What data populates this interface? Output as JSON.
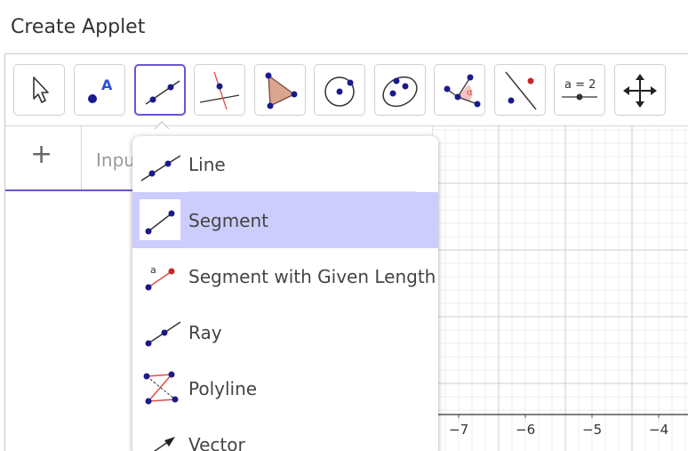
{
  "window": {
    "title": "Create Applet"
  },
  "toolbar": {
    "tools": [
      {
        "name": "Move",
        "icon": "arrow-cursor-icon"
      },
      {
        "name": "Point",
        "icon": "point-icon",
        "label": "A"
      },
      {
        "name": "Segment",
        "icon": "segment-icon",
        "active": true
      },
      {
        "name": "Perpendicular Line",
        "icon": "perpendicular-line-icon"
      },
      {
        "name": "Polygon",
        "icon": "polygon-icon"
      },
      {
        "name": "Circle with Center through Point",
        "icon": "circle-icon"
      },
      {
        "name": "Ellipse",
        "icon": "ellipse-icon"
      },
      {
        "name": "Angle",
        "icon": "angle-icon",
        "label": "α"
      },
      {
        "name": "Reflect about Line",
        "icon": "reflect-icon"
      },
      {
        "name": "Slider",
        "icon": "slider-icon",
        "label": "a = 2"
      },
      {
        "name": "Move Graphics View",
        "icon": "move-graphics-icon"
      }
    ]
  },
  "algebra": {
    "add_label": "+",
    "input_placeholder": "Input..."
  },
  "menu": {
    "items": [
      {
        "label": "Line",
        "icon": "line-icon"
      },
      {
        "label": "Segment",
        "icon": "segment-icon",
        "selected": true
      },
      {
        "label": "Segment with Given Length",
        "icon": "segment-given-length-icon",
        "point_label": "a"
      },
      {
        "label": "Ray",
        "icon": "ray-icon"
      },
      {
        "label": "Polyline",
        "icon": "polyline-icon"
      },
      {
        "label": "Vector",
        "icon": "vector-icon"
      }
    ]
  },
  "graphics": {
    "x_ticks": [
      "−7",
      "−6",
      "−5",
      "−4"
    ]
  },
  "colors": {
    "accent": "#6557d2",
    "selected_bg": "#cccdfd",
    "point": "#1a1a8c",
    "red_line": "#e04c4c",
    "polygon_fill": "#d9a58f"
  }
}
